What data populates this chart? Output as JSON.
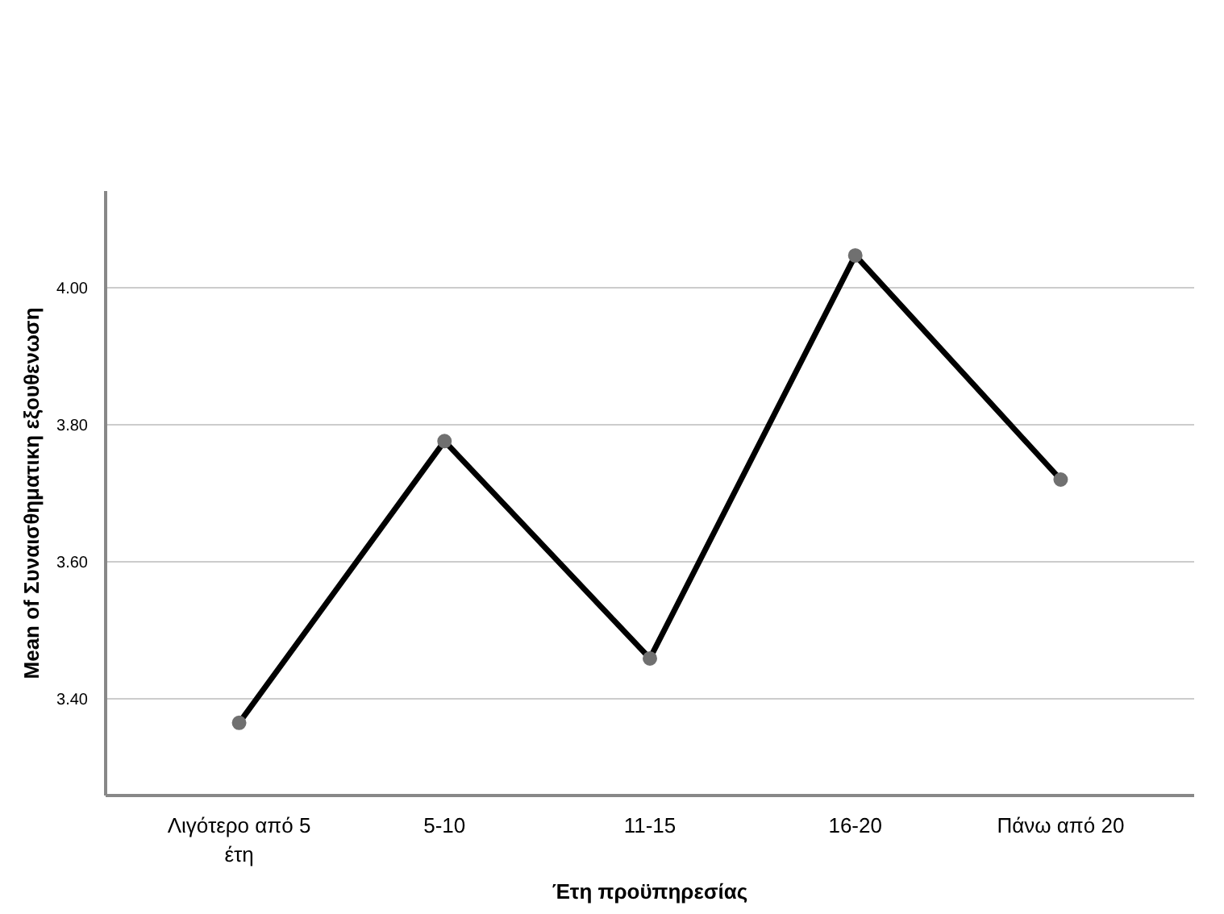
{
  "chart_data": {
    "type": "line",
    "xlabel": "Έτη προϋπηρεσίας",
    "ylabel": "Mean of Συναισθηματικη εξουθενωση",
    "categories": [
      "Λιγότερο από 5 έτη",
      "5-10",
      "11-15",
      "16-20",
      "Πάνω από 20"
    ],
    "series": [
      {
        "color": "#000000",
        "values": [
          3.365,
          3.776,
          3.459,
          4.047,
          3.72
        ]
      }
    ],
    "ylim": [
      3.259,
      4.141
    ],
    "yticks": [
      {
        "value": 3.4,
        "label": "3.40"
      },
      {
        "value": 3.6,
        "label": "3.60"
      },
      {
        "value": 3.8,
        "label": "3.80"
      },
      {
        "value": 4.0,
        "label": "4.00"
      }
    ],
    "grid": "y",
    "marker": "circle",
    "line_style": "solid"
  }
}
